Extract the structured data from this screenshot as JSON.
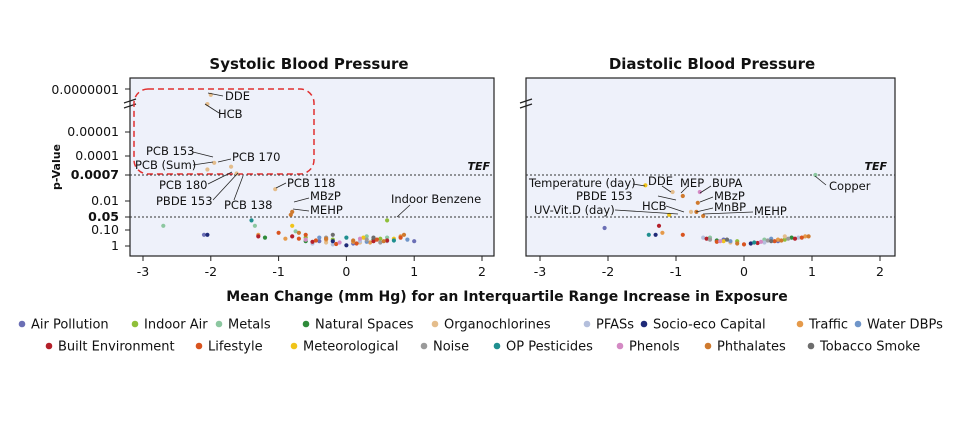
{
  "chart_data": [
    {
      "type": "scatter",
      "title": "Systolic Blood Pressure",
      "xlabel": "Mean Change (mm Hg) for an Interquartile Range Increase in Exposure",
      "ylabel": "p-Value",
      "xlim": [
        -3.2,
        2.2
      ],
      "xticks": [
        "-3",
        "-2",
        "-1",
        "0",
        "1",
        "2"
      ],
      "y_scale": "-log10 (reversed, broken axis)",
      "yticks": [
        "0.0000001",
        "0.00001",
        "0.0001",
        "0.0007",
        "0.01",
        "0.05",
        "0.10",
        "1"
      ],
      "tef_label": "TEF",
      "tef_p": 0.0007,
      "reference_p": 0.05,
      "highlight_box": true,
      "annotations": [
        {
          "label": "DDE",
          "x": -2.0,
          "p": 8e-08
        },
        {
          "label": "HCB",
          "x": -2.05,
          "p": 2e-07
        },
        {
          "label": "PCB 153",
          "x": -1.95,
          "p": 0.0002
        },
        {
          "label": "PCB (Sum)",
          "x": -2.05,
          "p": 0.0004
        },
        {
          "label": "PCB 170",
          "x": -1.7,
          "p": 0.0003
        },
        {
          "label": "PCB 180",
          "x": -1.7,
          "p": 0.0005
        },
        {
          "label": "PBDE 153",
          "x": -1.75,
          "p": 0.0007
        },
        {
          "label": "PCB 138",
          "x": -1.62,
          "p": 0.0006
        },
        {
          "label": "PCB 118",
          "x": -1.05,
          "p": 0.003
        },
        {
          "label": "MBzP",
          "x": -0.8,
          "p": 0.03
        },
        {
          "label": "MEHP",
          "x": -0.82,
          "p": 0.04
        },
        {
          "label": "Indoor Benzene",
          "x": 0.6,
          "p": 0.05
        }
      ],
      "series": [
        {
          "group": "Air Pollution",
          "points": [
            [
              -2.1,
              0.2
            ],
            [
              0.1,
              0.7
            ],
            [
              -0.4,
              0.5
            ],
            [
              1.0,
              0.5
            ]
          ]
        },
        {
          "group": "Indoor Air",
          "points": [
            [
              0.6,
              0.06
            ],
            [
              -0.2,
              0.4
            ],
            [
              0.5,
              0.35
            ],
            [
              -0.6,
              0.3
            ]
          ]
        },
        {
          "group": "Metals",
          "points": [
            [
              -2.7,
              0.08
            ],
            [
              -1.35,
              0.08
            ],
            [
              -0.75,
              0.12
            ],
            [
              0.3,
              0.25
            ],
            [
              0.6,
              0.3
            ]
          ]
        },
        {
          "group": "Natural Spaces",
          "points": [
            [
              -1.2,
              0.3
            ],
            [
              -0.6,
              0.5
            ],
            [
              0.4,
              0.4
            ]
          ]
        },
        {
          "group": "Organochlorines",
          "points": [
            [
              -2.0,
              8e-08
            ],
            [
              -2.05,
              2e-07
            ],
            [
              -1.95,
              0.0002
            ],
            [
              -2.05,
              0.0004
            ],
            [
              -1.7,
              0.0003
            ],
            [
              -1.62,
              0.0006
            ],
            [
              -1.05,
              0.003
            ],
            [
              -0.3,
              0.6
            ],
            [
              0.2,
              0.6
            ]
          ]
        },
        {
          "group": "PFASs",
          "points": [
            [
              -0.5,
              0.7
            ],
            [
              0.2,
              0.5
            ],
            [
              0.6,
              0.5
            ],
            [
              -0.2,
              0.8
            ]
          ]
        },
        {
          "group": "Socio-eco Capital",
          "points": [
            [
              -2.05,
              0.2
            ],
            [
              -0.2,
              0.5
            ],
            [
              0.0,
              0.9
            ]
          ]
        },
        {
          "group": "Traffic",
          "points": [
            [
              -1.3,
              0.2
            ],
            [
              -0.9,
              0.35
            ],
            [
              0.1,
              0.55
            ],
            [
              0.8,
              0.25
            ],
            [
              -0.3,
              0.4
            ],
            [
              0.35,
              0.6
            ]
          ]
        },
        {
          "group": "Water DBPs",
          "points": [
            [
              -0.4,
              0.3
            ],
            [
              0.3,
              0.55
            ],
            [
              0.9,
              0.4
            ]
          ]
        },
        {
          "group": "Built Environment",
          "points": [
            [
              -1.3,
              0.25
            ],
            [
              -0.8,
              0.25
            ],
            [
              -0.5,
              0.55
            ],
            [
              0.4,
              0.5
            ],
            [
              0.6,
              0.45
            ]
          ]
        },
        {
          "group": "Lifestyle",
          "points": [
            [
              -1.0,
              0.15
            ],
            [
              -0.7,
              0.35
            ],
            [
              -0.45,
              0.45
            ],
            [
              -0.15,
              0.75
            ],
            [
              0.15,
              0.7
            ],
            [
              0.45,
              0.4
            ],
            [
              0.8,
              0.3
            ],
            [
              -0.6,
              0.2
            ]
          ]
        },
        {
          "group": "Meteorological",
          "points": [
            [
              -0.8,
              0.08
            ],
            [
              0.25,
              0.3
            ],
            [
              0.7,
              0.35
            ]
          ]
        },
        {
          "group": "Noise",
          "points": [
            [
              -0.3,
              0.3
            ],
            [
              0.3,
              0.4
            ],
            [
              0.5,
              0.6
            ]
          ]
        },
        {
          "group": "OP Pesticides",
          "points": [
            [
              -1.4,
              0.06
            ],
            [
              0.0,
              0.3
            ],
            [
              0.7,
              0.45
            ]
          ]
        },
        {
          "group": "Phenols",
          "points": [
            [
              -0.6,
              0.4
            ],
            [
              -0.1,
              0.6
            ],
            [
              0.2,
              0.35
            ]
          ]
        },
        {
          "group": "Phthalates",
          "points": [
            [
              -0.8,
              0.03
            ],
            [
              -0.82,
              0.04
            ],
            [
              -0.7,
              0.15
            ],
            [
              -0.3,
              0.35
            ],
            [
              0.1,
              0.45
            ],
            [
              0.55,
              0.5
            ],
            [
              0.85,
              0.2
            ]
          ]
        },
        {
          "group": "Tobacco Smoke",
          "points": [
            [
              -0.2,
              0.2
            ],
            [
              0.4,
              0.3
            ]
          ]
        }
      ]
    },
    {
      "type": "scatter",
      "title": "Diastolic Blood Pressure",
      "xlabel": "Mean Change (mm Hg) for an Interquartile Range Increase in Exposure",
      "xlim": [
        -3.2,
        2.2
      ],
      "xticks": [
        "-3",
        "-2",
        "-1",
        "0",
        "1",
        "2"
      ],
      "tef_label": "TEF",
      "tef_p": 0.0007,
      "reference_p": 0.05,
      "annotations": [
        {
          "label": "Temperature (day)",
          "x": -1.45,
          "p": 0.002
        },
        {
          "label": "DDE",
          "x": -1.05,
          "p": 0.004
        },
        {
          "label": "MEP",
          "x": -0.9,
          "p": 0.006
        },
        {
          "label": "BUPA",
          "x": -0.65,
          "p": 0.004
        },
        {
          "label": "PBDE 153",
          "x": -1.05,
          "p": 0.012
        },
        {
          "label": "MBzP",
          "x": -0.68,
          "p": 0.012
        },
        {
          "label": "HCB",
          "x": -0.78,
          "p": 0.03
        },
        {
          "label": "MnBP",
          "x": -0.7,
          "p": 0.03
        },
        {
          "label": "UV-Vit.D (day)",
          "x": -1.1,
          "p": 0.04
        },
        {
          "label": "MEHP",
          "x": -0.6,
          "p": 0.045
        },
        {
          "label": "Copper",
          "x": 1.05,
          "p": 0.0007
        }
      ],
      "series": [
        {
          "group": "Air Pollution",
          "points": [
            [
              -2.05,
              0.09
            ],
            [
              -0.3,
              0.4
            ],
            [
              0.5,
              0.5
            ]
          ]
        },
        {
          "group": "Indoor Air",
          "points": [
            [
              -0.1,
              0.5
            ],
            [
              0.6,
              0.4
            ]
          ]
        },
        {
          "group": "Metals",
          "points": [
            [
              1.05,
              0.0007
            ],
            [
              -0.5,
              0.3
            ],
            [
              0.3,
              0.4
            ]
          ]
        },
        {
          "group": "Natural Spaces",
          "points": [
            [
              -0.4,
              0.45
            ],
            [
              0.7,
              0.3
            ]
          ]
        },
        {
          "group": "Organochlorines",
          "points": [
            [
              -1.05,
              0.004
            ],
            [
              -0.78,
              0.03
            ],
            [
              -0.2,
              0.6
            ],
            [
              0.6,
              0.25
            ]
          ]
        },
        {
          "group": "PFASs",
          "points": [
            [
              -0.6,
              0.3
            ],
            [
              0.3,
              0.6
            ],
            [
              0.8,
              0.3
            ]
          ]
        },
        {
          "group": "Socio-eco Capital",
          "points": [
            [
              -1.3,
              0.2
            ],
            [
              0.1,
              0.7
            ]
          ]
        },
        {
          "group": "Traffic",
          "points": [
            [
              -1.2,
              0.15
            ],
            [
              0.5,
              0.4
            ],
            [
              0.9,
              0.25
            ]
          ]
        },
        {
          "group": "Water DBPs",
          "points": [
            [
              -0.2,
              0.5
            ],
            [
              0.4,
              0.35
            ]
          ]
        },
        {
          "group": "Built Environment",
          "points": [
            [
              -1.25,
              0.08
            ],
            [
              -0.55,
              0.35
            ],
            [
              0.2,
              0.65
            ],
            [
              0.75,
              0.35
            ]
          ]
        },
        {
          "group": "Lifestyle",
          "points": [
            [
              -0.9,
              0.2
            ],
            [
              -0.4,
              0.55
            ],
            [
              0.0,
              0.8
            ],
            [
              0.45,
              0.5
            ],
            [
              0.85,
              0.3
            ]
          ]
        },
        {
          "group": "Meteorological",
          "points": [
            [
              -1.45,
              0.002
            ],
            [
              -1.1,
              0.04
            ],
            [
              -0.3,
              0.5
            ]
          ]
        },
        {
          "group": "Noise",
          "points": [
            [
              -0.5,
              0.4
            ],
            [
              0.35,
              0.45
            ],
            [
              0.65,
              0.35
            ]
          ]
        },
        {
          "group": "OP Pesticides",
          "points": [
            [
              -1.4,
              0.2
            ],
            [
              0.15,
              0.6
            ]
          ]
        },
        {
          "group": "Phenols",
          "points": [
            [
              -0.65,
              0.004
            ],
            [
              -0.35,
              0.5
            ],
            [
              0.25,
              0.55
            ]
          ]
        },
        {
          "group": "Phthalates",
          "points": [
            [
              -0.9,
              0.006
            ],
            [
              -0.68,
              0.012
            ],
            [
              -0.7,
              0.03
            ],
            [
              -0.6,
              0.045
            ],
            [
              -0.1,
              0.7
            ],
            [
              0.55,
              0.45
            ],
            [
              0.95,
              0.25
            ]
          ]
        },
        {
          "group": "Tobacco Smoke",
          "points": [
            [
              -0.25,
              0.4
            ],
            [
              0.4,
              0.5
            ]
          ]
        }
      ]
    }
  ],
  "legend": [
    {
      "label": "Air Pollution",
      "color": "#6b6fb5"
    },
    {
      "label": "Indoor Air",
      "color": "#8fbf3a"
    },
    {
      "label": "Metals",
      "color": "#8cc7a0"
    },
    {
      "label": "Natural Spaces",
      "color": "#2e8b3a"
    },
    {
      "label": "Organochlorines",
      "color": "#e4bd8c"
    },
    {
      "label": "PFASs",
      "color": "#b4bfdc"
    },
    {
      "label": "Socio-eco Capital",
      "color": "#1f2a78"
    },
    {
      "label": "Traffic",
      "color": "#e59a4a"
    },
    {
      "label": "Water DBPs",
      "color": "#6f95c9"
    },
    {
      "label": "Built Environment",
      "color": "#b4202a"
    },
    {
      "label": "Lifestyle",
      "color": "#d9541f"
    },
    {
      "label": "Meteorological",
      "color": "#f0c419"
    },
    {
      "label": "Noise",
      "color": "#9a9a9a"
    },
    {
      "label": "OP Pesticides",
      "color": "#1f8f8f"
    },
    {
      "label": "Phenols",
      "color": "#d48ac4"
    },
    {
      "label": "Phthalates",
      "color": "#cf7a2e"
    },
    {
      "label": "Tobacco Smoke",
      "color": "#6d6d6d"
    }
  ],
  "colors": {
    "panel_bg": "#eef1fa",
    "box": "#e03030"
  }
}
